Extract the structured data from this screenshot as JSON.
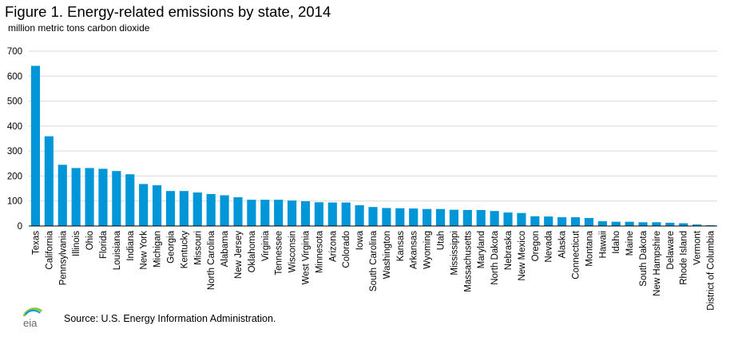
{
  "title": "Figure 1. Energy-related emissions by state, 2014",
  "subtitle": "million metric tons carbon dioxide",
  "source": "Source:  U.S. Energy Information Administration.",
  "logo_text": "eia",
  "colors": {
    "bar": "#0096d7",
    "grid": "#d9d9d9",
    "axis": "#000000",
    "logo_blue": "#0096d7",
    "logo_green": "#8cc63f",
    "logo_gray": "#888888"
  },
  "chart_data": {
    "type": "bar",
    "title": "Figure 1. Energy-related emissions by state, 2014",
    "ylabel": "million metric tons carbon dioxide",
    "xlabel": "",
    "ylim": [
      0,
      700
    ],
    "yticks": [
      0,
      100,
      200,
      300,
      400,
      500,
      600,
      700
    ],
    "grid": true,
    "categories": [
      "Texas",
      "California",
      "Pennsylvania",
      "Illinois",
      "Ohio",
      "Florida",
      "Louisiana",
      "Indiana",
      "New York",
      "Michigan",
      "Georgia",
      "Kentucky",
      "Missouri",
      "North Carolina",
      "Alabama",
      "New Jersey",
      "Oklahoma",
      "Virginia",
      "Tennessee",
      "Wisconsin",
      "West Virginia",
      "Minnesota",
      "Arizona",
      "Colorado",
      "Iowa",
      "South Carolina",
      "Washington",
      "Kansas",
      "Arkansas",
      "Wyoming",
      "Utah",
      "Mississippi",
      "Massachusetts",
      "Maryland",
      "North Dakota",
      "Nebraska",
      "New Mexico",
      "Oregon",
      "Nevada",
      "Alaska",
      "Connecticut",
      "Montana",
      "Hawaii",
      "Idaho",
      "Maine",
      "South Dakota",
      "New Hampshire",
      "Delaware",
      "Rhode Island",
      "Vermont",
      "District of Columbia"
    ],
    "values": [
      641,
      359,
      245,
      232,
      232,
      229,
      220,
      207,
      168,
      163,
      140,
      140,
      134,
      128,
      123,
      115,
      105,
      105,
      105,
      102,
      99,
      95,
      94,
      94,
      83,
      76,
      72,
      71,
      70,
      68,
      68,
      65,
      64,
      64,
      60,
      54,
      52,
      39,
      38,
      35,
      35,
      32,
      19,
      17,
      17,
      15,
      15,
      13,
      11,
      6,
      3
    ]
  }
}
